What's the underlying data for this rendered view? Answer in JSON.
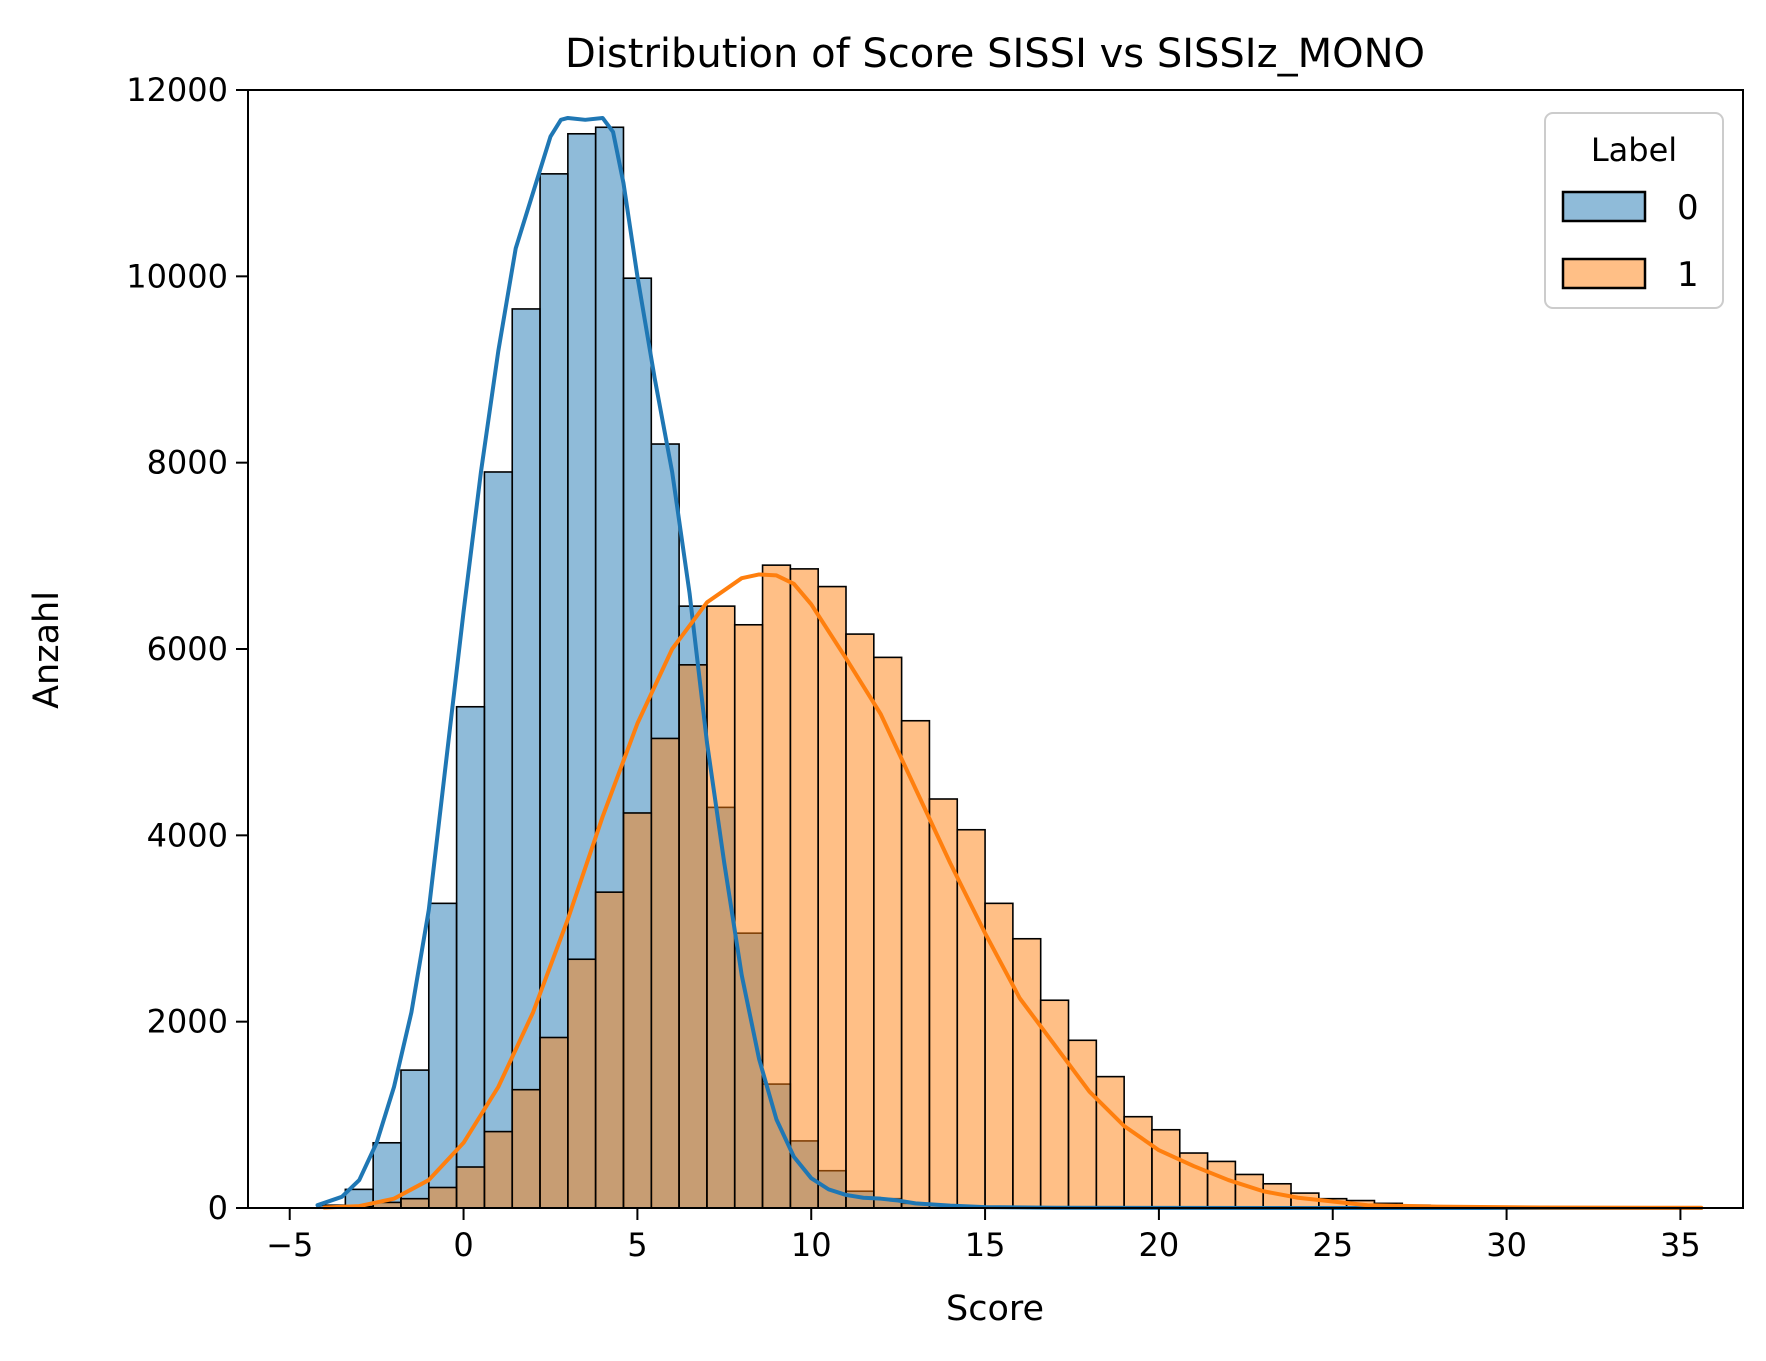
{
  "chart_data": {
    "type": "histogram",
    "title": "Distribution of Score SISSI vs SISSIz_MONO",
    "xlabel": "Score",
    "ylabel": "Anzahl",
    "xlim": [
      -6.2,
      36.8
    ],
    "ylim": [
      0,
      12000
    ],
    "xticks": [
      -5,
      0,
      5,
      10,
      15,
      20,
      25,
      30,
      35
    ],
    "xtick_labels": [
      "−5",
      "0",
      "5",
      "10",
      "15",
      "20",
      "25",
      "30",
      "35"
    ],
    "yticks": [
      0,
      2000,
      4000,
      6000,
      8000,
      10000,
      12000
    ],
    "ytick_labels": [
      "0",
      "2000",
      "4000",
      "6000",
      "8000",
      "10000",
      "12000"
    ],
    "grid": false,
    "legend": {
      "title": "Label",
      "position": "upper-right"
    },
    "bin_start": -4.2,
    "bin_width": 0.8,
    "series": [
      {
        "name": "0",
        "color": "#1f77b4",
        "fill_color": "#1f77b4",
        "fill_opacity": 0.5,
        "counts": [
          30,
          200,
          700,
          1480,
          3270,
          5380,
          7900,
          9650,
          11100,
          11530,
          11600,
          9980,
          8200,
          6460,
          4300,
          2950,
          1330,
          720,
          400,
          180,
          100,
          50,
          30,
          20,
          15,
          10,
          8,
          5,
          5,
          4,
          3,
          3,
          2,
          2,
          2,
          2,
          1,
          1,
          1,
          1,
          1,
          1,
          1,
          1,
          1,
          1,
          1,
          1,
          1,
          1
        ],
        "kde_x": [
          -4.2,
          -3.5,
          -3.0,
          -2.5,
          -2.0,
          -1.5,
          -1.0,
          -0.5,
          0.0,
          0.5,
          1.0,
          1.5,
          2.0,
          2.5,
          2.8,
          3.0,
          3.5,
          4.0,
          4.3,
          4.6,
          5.0,
          5.5,
          6.0,
          6.5,
          7.0,
          7.5,
          8.0,
          8.5,
          9.0,
          9.5,
          10.0,
          10.5,
          11.0,
          11.5,
          12.0,
          12.5,
          13.0,
          14.0,
          15.0,
          17.0,
          20.0,
          25.0,
          35.6
        ],
        "kde_y": [
          30,
          120,
          300,
          700,
          1300,
          2100,
          3200,
          4800,
          6400,
          7900,
          9200,
          10300,
          10900,
          11500,
          11680,
          11700,
          11680,
          11700,
          11550,
          11000,
          10000,
          8900,
          7900,
          6600,
          5000,
          3700,
          2500,
          1600,
          950,
          550,
          320,
          200,
          140,
          110,
          100,
          80,
          50,
          25,
          10,
          3,
          1,
          0,
          0
        ]
      },
      {
        "name": "1",
        "color": "#ff7f0e",
        "fill_color": "#ff7f0e",
        "fill_opacity": 0.5,
        "counts": [
          5,
          15,
          60,
          100,
          220,
          440,
          820,
          1270,
          1830,
          2670,
          3390,
          4240,
          5040,
          5830,
          6460,
          6260,
          6900,
          6860,
          6670,
          6160,
          5910,
          5230,
          4390,
          4060,
          3270,
          2890,
          2230,
          1800,
          1410,
          980,
          840,
          590,
          500,
          360,
          260,
          160,
          100,
          80,
          50,
          30,
          20,
          15,
          10,
          8,
          5,
          5,
          4,
          3,
          2,
          2
        ],
        "kde_x": [
          -4.0,
          -3.0,
          -2.0,
          -1.0,
          0.0,
          1.0,
          2.0,
          3.0,
          4.0,
          5.0,
          6.0,
          7.0,
          8.0,
          8.5,
          9.0,
          9.5,
          10.0,
          11.0,
          12.0,
          13.0,
          14.0,
          15.0,
          16.0,
          17.0,
          18.0,
          19.0,
          20.0,
          21.0,
          22.0,
          23.0,
          24.0,
          25.0,
          26.0,
          28.0,
          31.0,
          35.6
        ],
        "kde_y": [
          5,
          20,
          100,
          300,
          700,
          1300,
          2100,
          3100,
          4200,
          5200,
          6000,
          6500,
          6760,
          6800,
          6790,
          6700,
          6480,
          5900,
          5300,
          4500,
          3700,
          2950,
          2250,
          1750,
          1250,
          880,
          620,
          450,
          300,
          180,
          110,
          70,
          30,
          15,
          5,
          2
        ]
      }
    ]
  }
}
